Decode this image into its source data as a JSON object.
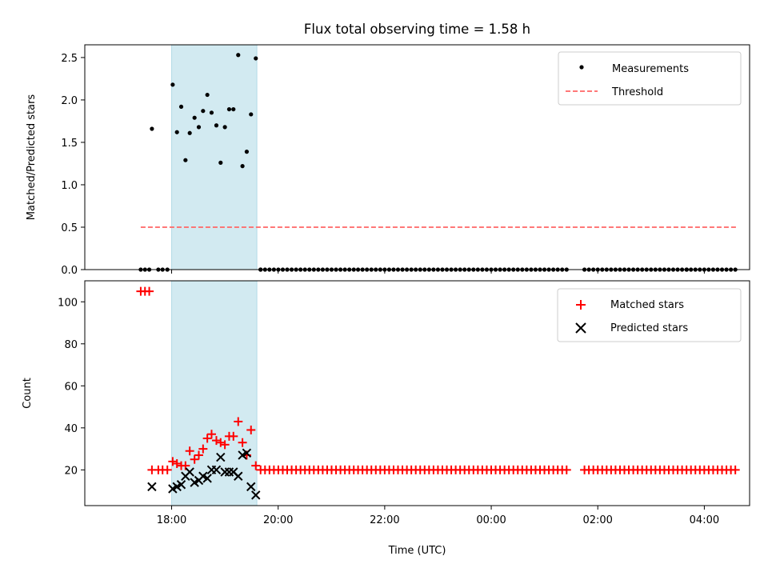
{
  "figure": {
    "title": "Flux total observing time = 1.58 h",
    "xlabel": "Time (UTC)"
  },
  "colors": {
    "shade": "#add8e6",
    "threshold": "#ff6666",
    "measurements": "#000000",
    "matched": "#ff0000",
    "predicted": "#000000"
  },
  "chart_data": [
    {
      "type": "scatter",
      "ylabel": "Matched/Predicted stars",
      "x_unit": "hours since 00:00 UTC",
      "xlim": [
        16.37,
        28.85
      ],
      "ylim": [
        0.0,
        2.65
      ],
      "xticks": [
        18,
        20,
        22,
        24,
        26,
        28
      ],
      "xtick_labels": [
        "18:00",
        "20:00",
        "22:00",
        "00:00",
        "02:00",
        "04:00"
      ],
      "yticks": [
        0.0,
        0.5,
        1.0,
        1.5,
        2.0,
        2.5
      ],
      "ytick_labels": [
        "0.0",
        "0.5",
        "1.0",
        "1.5",
        "2.0",
        "2.5"
      ],
      "shaded_span": [
        18.0,
        19.6
      ],
      "legend": {
        "position": "top-right",
        "entries": [
          "Measurements",
          "Threshold"
        ]
      },
      "series": [
        {
          "name": "Measurements",
          "marker": "dot",
          "points": [
            [
              17.42,
              0
            ],
            [
              17.5,
              0
            ],
            [
              17.58,
              0
            ],
            [
              17.63,
              1.66
            ],
            [
              17.75,
              0
            ],
            [
              17.83,
              0
            ],
            [
              17.92,
              0
            ],
            [
              18.02,
              2.18
            ],
            [
              18.1,
              1.62
            ],
            [
              18.18,
              1.92
            ],
            [
              18.26,
              1.29
            ],
            [
              18.34,
              1.61
            ],
            [
              18.43,
              1.79
            ],
            [
              18.51,
              1.68
            ],
            [
              18.59,
              1.87
            ],
            [
              18.67,
              2.06
            ],
            [
              18.75,
              1.85
            ],
            [
              18.84,
              1.7
            ],
            [
              18.92,
              1.26
            ],
            [
              19.0,
              1.68
            ],
            [
              19.08,
              1.89
            ],
            [
              19.16,
              1.89
            ],
            [
              19.25,
              2.53
            ],
            [
              19.33,
              1.22
            ],
            [
              19.41,
              1.39
            ],
            [
              19.49,
              1.83
            ],
            [
              19.58,
              2.49
            ],
            [
              19.67,
              0
            ],
            [
              27.67,
              0
            ]
          ],
          "zero_runs": [
            {
              "from": 19.67,
              "to": 21.42,
              "step": 0.0833
            },
            {
              "from": 21.5,
              "to": 25.45,
              "step": 0.0833
            },
            {
              "from": 25.75,
              "to": 28.6,
              "step": 0.0833
            }
          ]
        },
        {
          "name": "Threshold",
          "type": "line",
          "style": "dashed",
          "x": [
            17.42,
            28.6
          ],
          "values": [
            0.5,
            0.5
          ]
        }
      ]
    },
    {
      "type": "scatter",
      "ylabel": "Count",
      "x_unit": "hours since 00:00 UTC",
      "xlim": [
        16.37,
        28.85
      ],
      "ylim": [
        3.0,
        110.0
      ],
      "xticks": [
        18,
        20,
        22,
        24,
        26,
        28
      ],
      "xtick_labels": [
        "18:00",
        "20:00",
        "22:00",
        "00:00",
        "02:00",
        "04:00"
      ],
      "yticks": [
        20,
        40,
        60,
        80,
        100
      ],
      "ytick_labels": [
        "20",
        "40",
        "60",
        "80",
        "100"
      ],
      "shaded_span": [
        18.0,
        19.6
      ],
      "legend": {
        "position": "top-right",
        "entries": [
          "Matched stars",
          "Predicted stars"
        ]
      },
      "series": [
        {
          "name": "Matched stars",
          "marker": "plus",
          "points": [
            [
              17.42,
              105
            ],
            [
              17.5,
              105
            ],
            [
              17.58,
              105
            ],
            [
              17.63,
              20
            ],
            [
              17.75,
              20
            ],
            [
              17.83,
              20
            ],
            [
              17.92,
              20
            ],
            [
              18.02,
              24
            ],
            [
              18.1,
              23
            ],
            [
              18.18,
              22
            ],
            [
              18.26,
              22
            ],
            [
              18.34,
              29
            ],
            [
              18.43,
              25
            ],
            [
              18.51,
              27
            ],
            [
              18.59,
              30
            ],
            [
              18.67,
              35
            ],
            [
              18.75,
              37
            ],
            [
              18.84,
              34
            ],
            [
              18.92,
              33
            ],
            [
              19.0,
              32
            ],
            [
              19.08,
              36
            ],
            [
              19.16,
              36
            ],
            [
              19.25,
              43
            ],
            [
              19.33,
              33
            ],
            [
              19.41,
              27
            ],
            [
              19.49,
              39
            ],
            [
              19.58,
              22
            ]
          ],
          "constant_runs": [
            {
              "from": 19.67,
              "to": 21.42,
              "step": 0.0833,
              "value": 20
            },
            {
              "from": 21.5,
              "to": 25.45,
              "step": 0.0833,
              "value": 20
            },
            {
              "from": 25.75,
              "to": 28.6,
              "step": 0.0833,
              "value": 20
            }
          ]
        },
        {
          "name": "Predicted stars",
          "marker": "x",
          "points": [
            [
              17.63,
              12
            ],
            [
              18.02,
              11
            ],
            [
              18.1,
              12
            ],
            [
              18.18,
              13
            ],
            [
              18.26,
              17
            ],
            [
              18.34,
              19
            ],
            [
              18.43,
              14
            ],
            [
              18.51,
              15
            ],
            [
              18.59,
              17
            ],
            [
              18.67,
              16
            ],
            [
              18.75,
              20
            ],
            [
              18.84,
              20
            ],
            [
              18.92,
              26
            ],
            [
              19.0,
              19
            ],
            [
              19.08,
              19
            ],
            [
              19.16,
              19
            ],
            [
              19.25,
              17
            ],
            [
              19.33,
              27
            ],
            [
              19.41,
              28
            ],
            [
              19.49,
              12
            ],
            [
              19.58,
              8
            ]
          ]
        }
      ]
    }
  ]
}
